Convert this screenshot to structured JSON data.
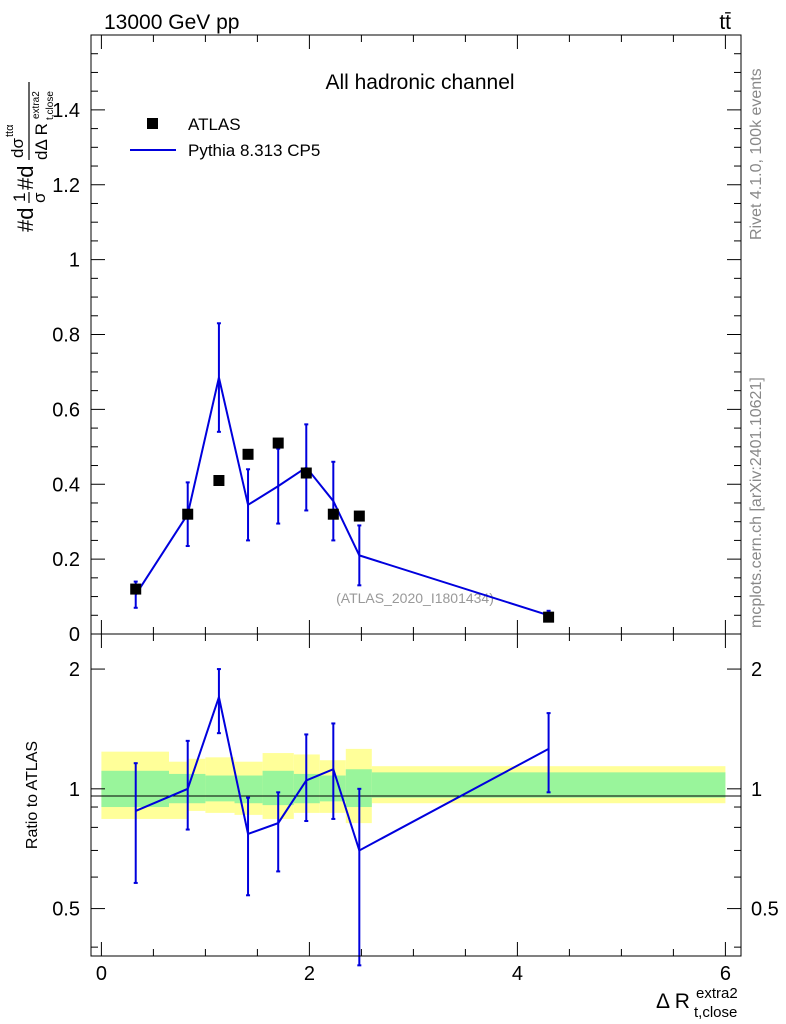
{
  "header": {
    "energy": "13000 GeV pp",
    "process": "tt̄",
    "channel": "All hadronic channel",
    "analysis_id": "(ATLAS_2020_I1801434)",
    "rivet": "Rivet 4.1.0,  100k events",
    "source": "mcplots.cern.ch [arXiv:2401.10621]"
  },
  "axes": {
    "ylabel_main": "#d1/σ#d dσ^ttα / dΔ R_t,close^extra2",
    "ylabel_ratio": "Ratio to ATLAS",
    "xlabel": "Δ R_t,close^extra2"
  },
  "legend": {
    "data_label": "ATLAS",
    "mc_label": "Pythia 8.313 CP5"
  },
  "colors": {
    "mc": "#0000dd",
    "data": "#000000",
    "band_inner": "#99f59b",
    "band_outer": "#ffff99"
  },
  "chart_data": [
    {
      "type": "scatter",
      "panel": "main",
      "xlim": [
        -0.1,
        6.15
      ],
      "ylim": [
        0,
        1.6
      ],
      "yticks": [
        0,
        0.2,
        0.4,
        0.6,
        0.8,
        1,
        1.2,
        1.4
      ],
      "ytick_labels": [
        "0",
        "0.2",
        "0.4",
        "0.6",
        "0.8",
        "1",
        "1.2",
        "1.4"
      ],
      "series": [
        {
          "name": "ATLAS",
          "x": [
            0.33,
            0.83,
            1.13,
            1.41,
            1.7,
            1.97,
            2.23,
            2.48,
            4.3
          ],
          "y": [
            0.12,
            0.32,
            0.41,
            0.48,
            0.51,
            0.43,
            0.32,
            0.315,
            0.045
          ]
        },
        {
          "name": "Pythia 8.313 CP5",
          "x": [
            0.33,
            0.83,
            1.13,
            1.41,
            1.7,
            1.97,
            2.23,
            2.48,
            4.3
          ],
          "y": [
            0.105,
            0.32,
            0.685,
            0.345,
            0.395,
            0.445,
            0.355,
            0.21,
            0.05
          ],
          "err": [
            0.035,
            0.085,
            0.145,
            0.095,
            0.1,
            0.115,
            0.105,
            0.08,
            0.012
          ]
        }
      ]
    },
    {
      "type": "line",
      "panel": "ratio",
      "xlim": [
        -0.1,
        6.15
      ],
      "ylim": [
        0.38,
        2.45
      ],
      "log_y": true,
      "yticks": [
        0.5,
        1,
        2
      ],
      "ytick_labels": [
        "0.5",
        "1",
        "2"
      ],
      "xticks": [
        0,
        2,
        4,
        6
      ],
      "xtick_labels": [
        "0",
        "2",
        "4",
        "6"
      ],
      "bands": {
        "edges": [
          0,
          0.65,
          0.83,
          1,
          1.28,
          1.55,
          1.85,
          2.1,
          2.35,
          2.6,
          6
        ],
        "inner_lo": [
          0.9,
          0.92,
          0.92,
          0.93,
          0.92,
          0.91,
          0.92,
          0.93,
          0.9,
          0.95
        ],
        "inner_hi": [
          1.11,
          1.09,
          1.09,
          1.08,
          1.08,
          1.11,
          1.09,
          1.08,
          1.12,
          1.1
        ],
        "outer_lo": [
          0.84,
          0.84,
          0.88,
          0.87,
          0.86,
          0.84,
          0.87,
          0.87,
          0.82,
          0.92
        ],
        "outer_hi": [
          1.24,
          1.17,
          1.19,
          1.2,
          1.17,
          1.23,
          1.22,
          1.18,
          1.26,
          1.14
        ]
      },
      "series": [
        {
          "name": "Pythia 8.313 CP5",
          "x": [
            0.33,
            0.83,
            1.13,
            1.41,
            1.7,
            1.97,
            2.23,
            2.48,
            4.3
          ],
          "y": [
            0.88,
            1.0,
            1.7,
            0.77,
            0.82,
            1.05,
            1.12,
            0.7,
            1.26
          ],
          "lo": [
            0.58,
            0.79,
            1.38,
            0.54,
            0.62,
            0.83,
            0.84,
            0.36,
            0.98
          ],
          "hi": [
            1.16,
            1.32,
            2.0,
            0.95,
            0.98,
            1.37,
            1.46,
            1.0,
            1.55
          ]
        }
      ]
    }
  ]
}
